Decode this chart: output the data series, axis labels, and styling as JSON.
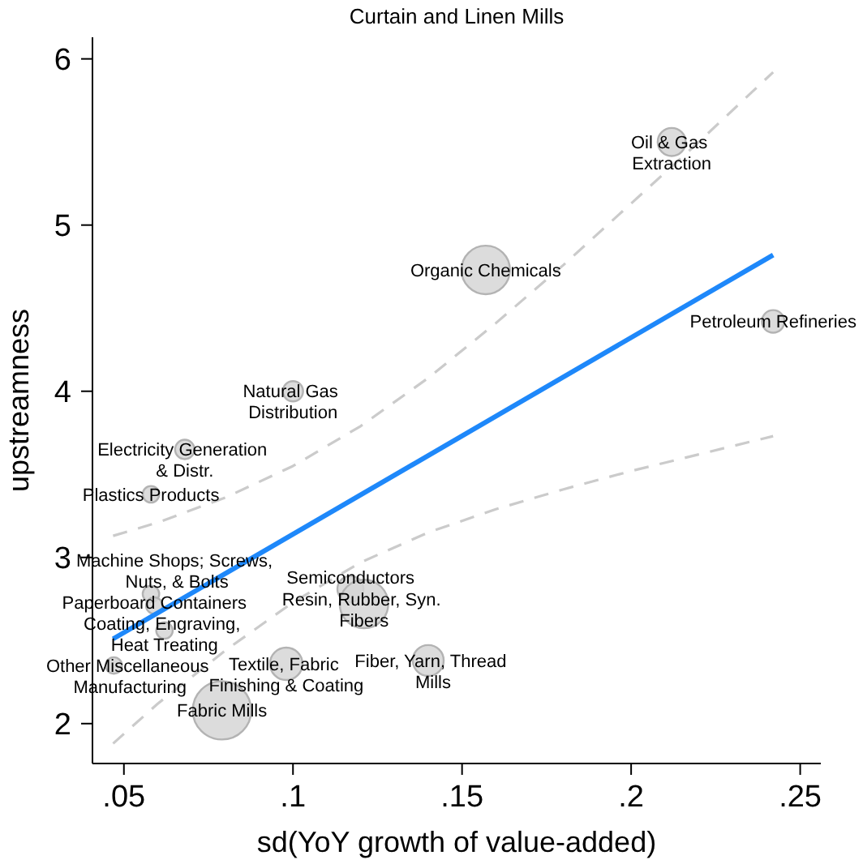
{
  "chart_data": {
    "type": "bubble",
    "title": "Curtain and Linen Mills",
    "xlabel": "sd(YoY growth of value-added)",
    "ylabel": "upstreamness",
    "xlim": [
      0.0407,
      0.2561
    ],
    "xticks": [
      {
        "value": 0.05,
        "label": ".05"
      },
      {
        "value": 0.1,
        "label": ".1"
      },
      {
        "value": 0.15,
        "label": ".15"
      },
      {
        "value": 0.2,
        "label": ".2"
      },
      {
        "value": 0.25,
        "label": ".25"
      }
    ],
    "ylim": [
      1.76,
      6.13
    ],
    "yticks": [
      2,
      3,
      4,
      5,
      6
    ],
    "series": [
      {
        "color": "#d6d6d6",
        "marker": "circle",
        "x": [
          0.212,
          0.157,
          0.242,
          0.1,
          0.068,
          0.058,
          0.058,
          0.059,
          0.117,
          0.121,
          0.062,
          0.047,
          0.098,
          0.14,
          0.079
        ],
        "values": [
          5.5,
          4.73,
          4.42,
          4.0,
          3.65,
          3.38,
          2.78,
          2.71,
          2.81,
          2.72,
          2.56,
          2.35,
          2.36,
          2.38,
          2.08
        ],
        "sizes": [
          0.23,
          0.69,
          0.15,
          0.12,
          0.11,
          0.08,
          0.08,
          0.08,
          0.2,
          0.69,
          0.08,
          0.08,
          0.31,
          0.28,
          1
        ]
      },
      {
        "type": "line",
        "color": "#1e88fa",
        "marker": "none",
        "line_style": "solid",
        "x": [
          0.0468,
          0.242
        ],
        "values": [
          2.51,
          4.82
        ]
      },
      {
        "type": "line",
        "color": "#cbcbcb",
        "marker": "none",
        "line_style": "dashed",
        "x": [
          0.0468,
          0.06,
          0.08,
          0.1,
          0.12,
          0.14,
          0.16,
          0.18,
          0.2,
          0.22,
          0.242
        ],
        "values": [
          3.13,
          3.21,
          3.36,
          3.55,
          3.79,
          4.08,
          4.41,
          4.76,
          5.13,
          5.5,
          5.92
        ]
      },
      {
        "type": "line",
        "color": "#cbcbcb",
        "marker": "none",
        "line_style": "dashed",
        "x": [
          0.0468,
          0.06,
          0.08,
          0.1,
          0.12,
          0.14,
          0.16,
          0.18,
          0.2,
          0.22,
          0.242
        ],
        "values": [
          1.88,
          2.12,
          2.44,
          2.73,
          2.97,
          3.15,
          3.29,
          3.41,
          3.52,
          3.62,
          3.73
        ]
      }
    ],
    "annotations": [
      {
        "text": "Oil & Gas\nExtraction",
        "x": 0.212,
        "y": 5.5
      },
      {
        "text": "Organic Chemicals",
        "x": 0.157,
        "y": 4.73
      },
      {
        "text": "Petroleum Refineries",
        "x": 0.242,
        "y": 4.42
      },
      {
        "text": "Natural Gas\nDistribution",
        "x": 0.1,
        "y": 4.0
      },
      {
        "text": "Electricity Generation\n& Distr.",
        "x": 0.068,
        "y": 3.65
      },
      {
        "text": "Plastics Products",
        "x": 0.058,
        "y": 3.38
      },
      {
        "text": "Machine Shops; Screws,\nNuts, & Bolts",
        "x": 0.058,
        "y": 2.78
      },
      {
        "text": "Paperboard Containers",
        "x": 0.059,
        "y": 2.71
      },
      {
        "text": "Semiconductors",
        "x": 0.117,
        "y": 2.81
      },
      {
        "text": "Resin, Rubber, Syn.\nFibers",
        "x": 0.121,
        "y": 2.72
      },
      {
        "text": "Coating, Engraving,\nHeat Treating",
        "x": 0.062,
        "y": 2.56
      },
      {
        "text": "Other Miscellaneous\nManufacturing",
        "x": 0.047,
        "y": 2.35
      },
      {
        "text": "Textile, Fabric\nFinishing & Coating",
        "x": 0.098,
        "y": 2.36
      },
      {
        "text": "Fiber, Yarn, Thread\nMills",
        "x": 0.14,
        "y": 2.38
      },
      {
        "text": "Fabric Mills",
        "x": 0.079,
        "y": 2.08
      }
    ]
  }
}
